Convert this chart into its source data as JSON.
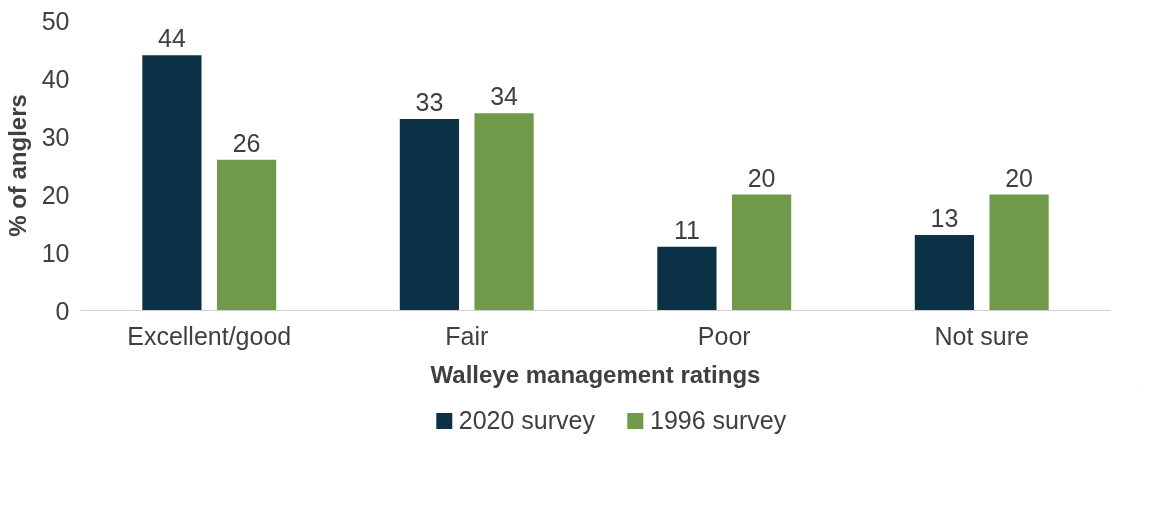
{
  "chart_data": {
    "type": "bar",
    "xlabel": "Walleye management ratings",
    "ylabel": "% of anglers",
    "categories": [
      "Excellent/good",
      "Fair",
      "Poor",
      "Not sure"
    ],
    "series": [
      {
        "name": "2020 survey",
        "color": "#0b3147",
        "values": [
          44,
          33,
          11,
          13
        ]
      },
      {
        "name": "1996 survey",
        "color": "#70994a",
        "values": [
          26,
          34,
          20,
          20
        ]
      }
    ],
    "ylim": [
      0,
      50
    ],
    "yticks": [
      0,
      10,
      20,
      30,
      40,
      50
    ],
    "data_labels": true,
    "grid": false,
    "legend": "bottom"
  }
}
